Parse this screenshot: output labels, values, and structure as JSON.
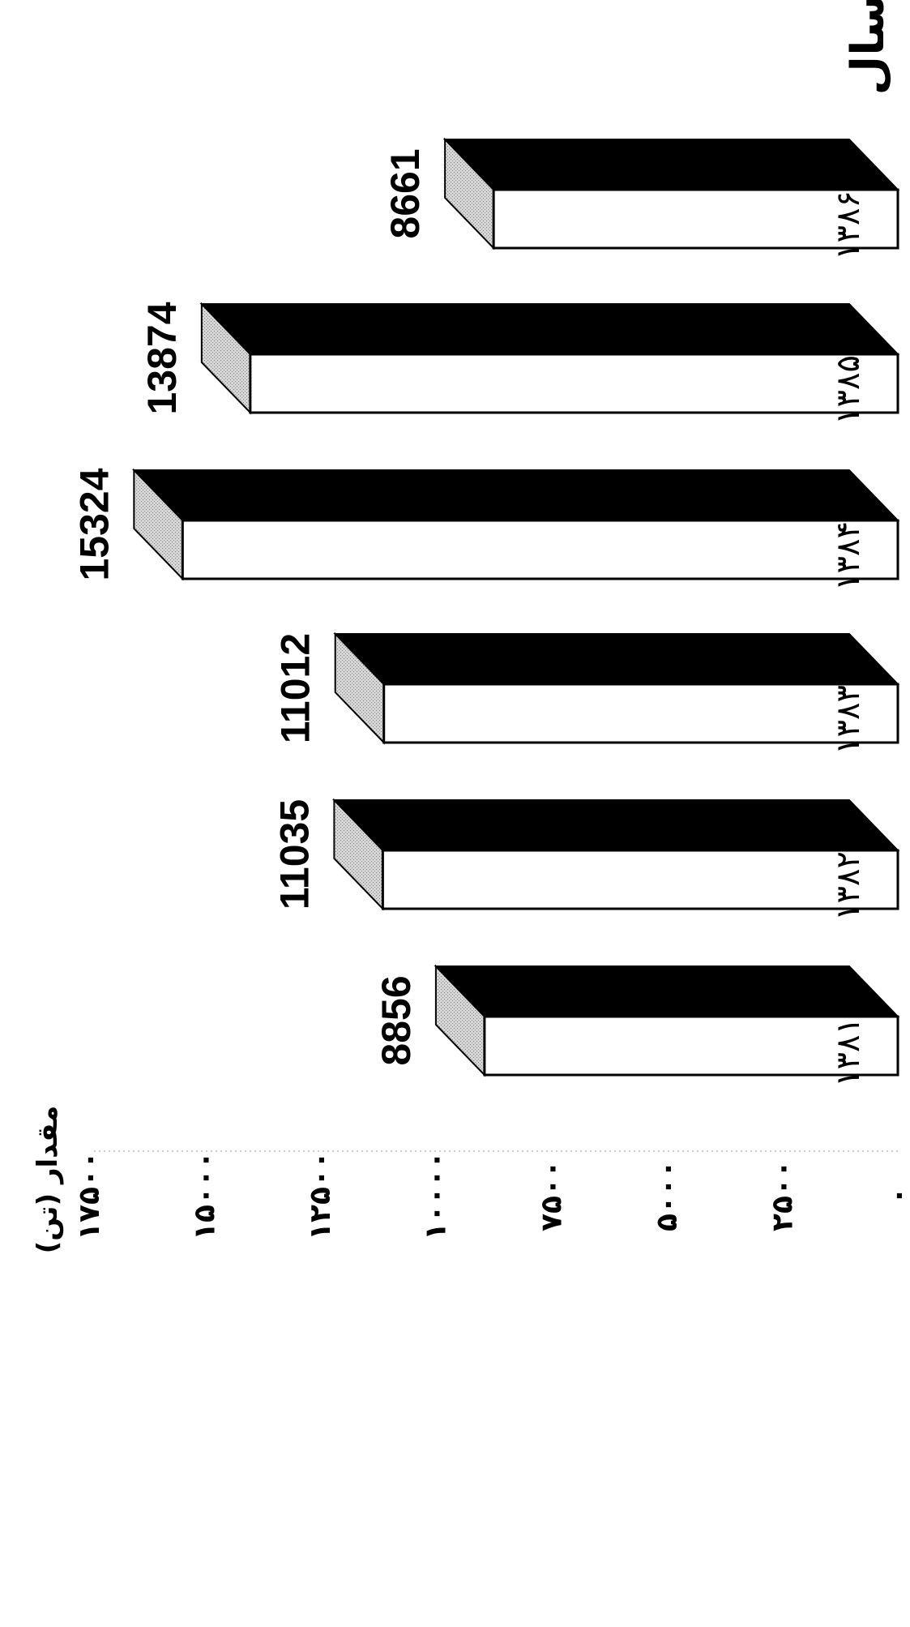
{
  "chart_data": {
    "type": "bar",
    "orientation": "rotated-90",
    "categories": [
      "۱۳۸۱",
      "۱۳۸۲",
      "۱۳۸۳",
      "۱۳۸۴",
      "۱۳۸۵",
      "۱۳۸۶"
    ],
    "values": [
      8856,
      11035,
      11012,
      15324,
      13874,
      8661
    ],
    "value_labels": [
      "8856",
      "11035",
      "11012",
      "15324",
      "13874",
      "8661"
    ],
    "xlabel": "سال",
    "ylabel": "مقدار (تن)",
    "yticks": [
      0,
      2500,
      5000,
      7500,
      10000,
      12500,
      15000,
      17500
    ],
    "ytick_labels": [
      "۰",
      "۲۵۰۰",
      "۵۰۰۰",
      "۷۵۰۰",
      "۱۰۰۰۰",
      "۱۲۵۰۰",
      "۱۵۰۰۰",
      "۱۷۵۰۰"
    ],
    "ylim": [
      0,
      17500
    ],
    "grid": false,
    "style": "3d-box",
    "colors": {
      "front": "#ffffff",
      "top": "#000000",
      "side": "#c9c9c9",
      "outline": "#000000"
    }
  }
}
